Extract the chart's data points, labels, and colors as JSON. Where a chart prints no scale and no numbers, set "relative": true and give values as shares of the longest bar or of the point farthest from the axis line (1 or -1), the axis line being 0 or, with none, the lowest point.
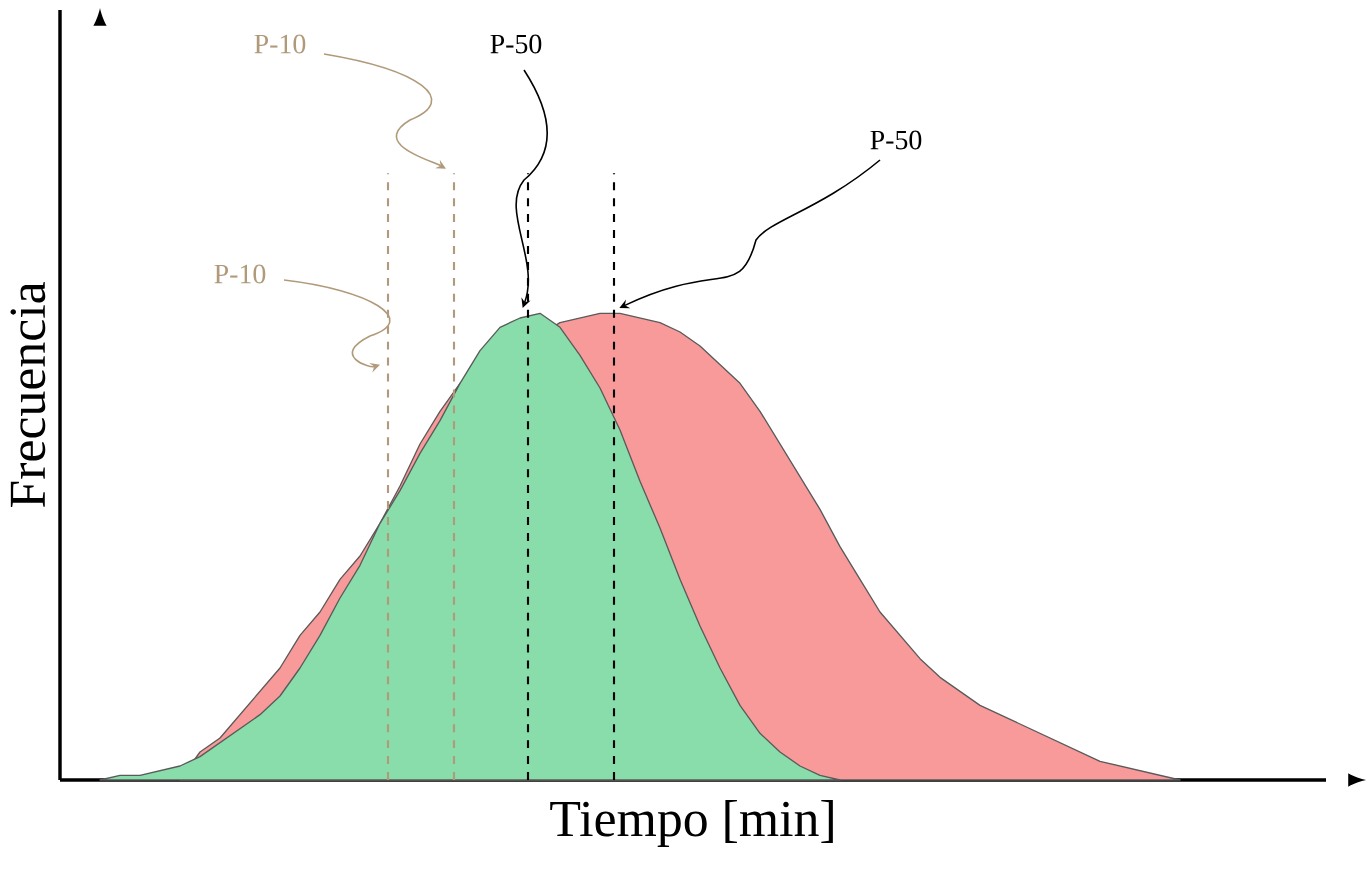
{
  "chart_data": {
    "type": "area",
    "relative": true,
    "xlabel": "Tiempo [min]",
    "ylabel": "Frecuencia",
    "categories": [
      null,
      null,
      null,
      null,
      null,
      null,
      null,
      null,
      null,
      null,
      null,
      null,
      null,
      null,
      null,
      null,
      null,
      null,
      null,
      null,
      null,
      null,
      null,
      null,
      null,
      null,
      null,
      null,
      null,
      null,
      null,
      null,
      null,
      null,
      null,
      null,
      null,
      null,
      null,
      null,
      null,
      null,
      null,
      null,
      null,
      null,
      null,
      null,
      null,
      null,
      null,
      null,
      null,
      null,
      null
    ],
    "series": [
      {
        "color": "#f99a9a",
        "values": [
          null,
          null,
          null,
          null,
          0,
          0.06,
          0.09,
          0.14,
          0.19,
          0.24,
          0.31,
          0.36,
          0.43,
          0.48,
          0.55,
          0.63,
          0.72,
          0.79,
          0.85,
          null,
          null,
          null,
          null,
          0.98,
          0.99,
          1.0,
          1.0,
          0.99,
          0.98,
          0.96,
          0.93,
          0.89,
          0.85,
          0.79,
          0.72,
          0.65,
          0.58,
          0.5,
          0.43,
          0.36,
          0.31,
          0.26,
          0.22,
          0.19,
          0.16,
          0.14,
          0.12,
          0.1,
          0.08,
          0.06,
          0.04,
          0.03,
          0.02,
          0.01,
          0
        ]
      },
      {
        "color": "#88ddaa",
        "values": [
          0,
          0.01,
          0.01,
          0.02,
          0.03,
          0.05,
          0.08,
          0.11,
          0.14,
          0.18,
          0.24,
          0.31,
          0.39,
          0.46,
          0.55,
          0.62,
          0.7,
          0.77,
          0.85,
          0.92,
          0.97,
          0.99,
          1.0,
          0.97,
          0.91,
          0.84,
          0.75,
          0.64,
          0.54,
          0.43,
          0.33,
          0.24,
          0.16,
          0.1,
          0.06,
          0.03,
          0.01,
          0,
          null,
          null,
          null,
          null,
          null,
          null,
          null,
          null,
          null,
          null,
          null,
          null,
          null,
          null,
          null,
          null,
          null
        ]
      }
    ],
    "annotations": [
      "P-10",
      "P-10",
      "P-50",
      "P-50"
    ]
  }
}
